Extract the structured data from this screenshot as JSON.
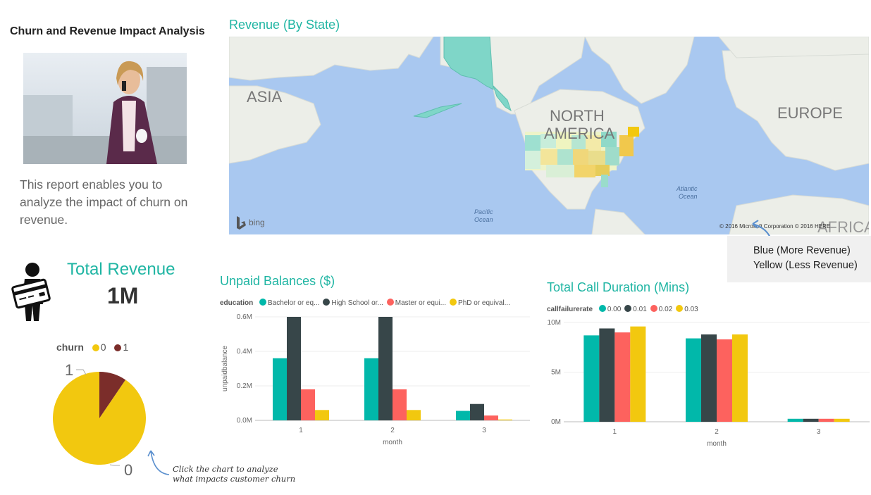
{
  "report": {
    "title": "Churn and Revenue Impact Analysis",
    "description": "This report enables you to analyze the impact of churn on revenue."
  },
  "map": {
    "title": "Revenue (By State)",
    "labels": {
      "asia": "ASIA",
      "north_america_1": "NORTH",
      "north_america_2": "AMERICA",
      "europe": "EUROPE",
      "africa": "AFRICA",
      "atlantic_1": "Atlantic",
      "atlantic_2": "Ocean",
      "pacific_1": "Pacific",
      "pacific_2": "Ocean"
    },
    "bing_logo": "bing",
    "attribution": "© 2016 Microsoft Corporation   © 2016 HERE",
    "legend_line1": "Blue (More Revenue)",
    "legend_line2": "Yellow (Less Revenue)"
  },
  "revenue": {
    "title": "Total Revenue",
    "value": "1M",
    "icon": "person-with-credit-card-icon"
  },
  "colors": {
    "teal": "#01b8aa",
    "dark": "#374649",
    "red": "#fd625e",
    "yellow": "#f2c80f",
    "maroon": "#7b2d2a",
    "title_teal": "#1fb5a3",
    "map_water": "#a9c8f0",
    "map_land": "#eceee8"
  },
  "churn_chart": {
    "legend_title": "churn",
    "legend_items": [
      "0",
      "1"
    ],
    "label_0": "0",
    "label_1": "1",
    "hint": "Click the chart to analyze what impacts customer churn",
    "chart_data": {
      "type": "pie",
      "categories": [
        "0",
        "1"
      ],
      "values": [
        90.5,
        9.5
      ],
      "colors": [
        "#f2c80f",
        "#7b2d2a"
      ]
    }
  },
  "unpaid_chart": {
    "title": "Unpaid Balances ($)",
    "legend_title": "education",
    "legend_items": [
      "Bachelor or eq...",
      "High School or...",
      "Master or equi...",
      "PhD or equival..."
    ],
    "y_ticks": [
      "0.6M",
      "0.4M",
      "0.2M",
      "0.0M"
    ],
    "ylabel": "unpaidbalance",
    "xlabel": "month",
    "chart_data": {
      "type": "bar",
      "categories": [
        "1",
        "2",
        "3"
      ],
      "ylim": [
        0,
        600000
      ],
      "series": [
        {
          "name": "Bachelor or eq...",
          "values": [
            360000,
            360000,
            55000
          ]
        },
        {
          "name": "High School or...",
          "values": [
            600000,
            600000,
            95000
          ]
        },
        {
          "name": "Master or equi...",
          "values": [
            180000,
            180000,
            28000
          ]
        },
        {
          "name": "PhD or equival...",
          "values": [
            60000,
            60000,
            5000
          ]
        }
      ]
    }
  },
  "duration_chart": {
    "title": "Total Call Duration (Mins)",
    "legend_title": "callfailurerate",
    "legend_items": [
      "0.00",
      "0.01",
      "0.02",
      "0.03"
    ],
    "y_ticks": [
      "10M",
      "5M",
      "0M"
    ],
    "xlabel": "month",
    "chart_data": {
      "type": "bar",
      "categories": [
        "1",
        "2",
        "3"
      ],
      "ylim": [
        0,
        10000000
      ],
      "series": [
        {
          "name": "0.00",
          "values": [
            8700000,
            8400000,
            300000
          ]
        },
        {
          "name": "0.01",
          "values": [
            9400000,
            8800000,
            300000
          ]
        },
        {
          "name": "0.02",
          "values": [
            9000000,
            8300000,
            300000
          ]
        },
        {
          "name": "0.03",
          "values": [
            9600000,
            8800000,
            300000
          ]
        }
      ]
    }
  }
}
